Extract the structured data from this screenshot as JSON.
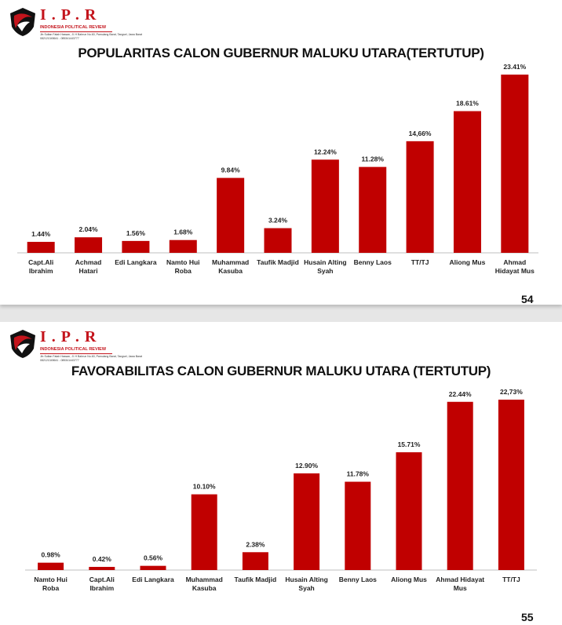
{
  "slides": [
    {
      "logo": {
        "title": "I . P . R",
        "subtitle": "INDONESIA POLITICAL REVIEW",
        "address": "Jln Sultan Fatah Hassan, Jl. H Bahrun No.60, Pamulang Barat, Tangsel, Jawa Barat",
        "contact": "082121345641 - 085341443777"
      },
      "page_number": "54"
    },
    {
      "logo": {
        "title": "I . P . R",
        "subtitle": "INDONESIA POLITICAL REVIEW",
        "address": "Jln Sultan Fatah Hassan, Jl. H Bahrun No.60, Pamulang Barat, Tangsel, Jawa Barat",
        "contact": "082121345641 - 085341443777"
      },
      "page_number": "55"
    }
  ],
  "colors": {
    "bar": "#c00000",
    "brand": "#c4141c",
    "axis": "#bfbfbf"
  },
  "chart_data": [
    {
      "type": "bar",
      "title": "POPULARITAS CALON GUBERNUR MALUKU UTARA(TERTUTUP)",
      "xlabel": "",
      "ylabel": "",
      "ylim": [
        0,
        23.41
      ],
      "grid": false,
      "categories": [
        [
          "Capt.Ali",
          "Ibrahim"
        ],
        [
          "Achmad",
          "Hatari"
        ],
        [
          "Edi Langkara"
        ],
        [
          "Namto Hui",
          "Roba"
        ],
        [
          "Muhammad",
          "Kasuba"
        ],
        [
          "Taufik Madjid"
        ],
        [
          "Husain Alting",
          "Syah"
        ],
        [
          "Benny Laos"
        ],
        [
          "TT/TJ"
        ],
        [
          "Aliong Mus"
        ],
        [
          "Ahmad",
          "Hidayat Mus"
        ]
      ],
      "values": [
        1.44,
        2.04,
        1.56,
        1.68,
        9.84,
        3.24,
        12.24,
        11.28,
        14.66,
        18.61,
        23.41
      ],
      "labels": [
        "1.44%",
        "2.04%",
        "1.56%",
        "1.68%",
        "9.84%",
        "3.24%",
        "12.24%",
        "11.28%",
        "14,66%",
        "18.61%",
        "23.41%"
      ]
    },
    {
      "type": "bar",
      "title": "FAVORABILITAS  CALON GUBERNUR MALUKU UTARA  (TERTUTUP)",
      "xlabel": "",
      "ylabel": "",
      "ylim": [
        0,
        22.73
      ],
      "grid": false,
      "categories": [
        [
          "Namto Hui",
          "Roba"
        ],
        [
          "Capt.Ali",
          "Ibrahim"
        ],
        [
          "Edi Langkara"
        ],
        [
          "Muhammad",
          "Kasuba"
        ],
        [
          "Taufik Madjid"
        ],
        [
          "Husain Alting",
          "Syah"
        ],
        [
          "Benny Laos"
        ],
        [
          "Aliong Mus"
        ],
        [
          "Ahmad Hidayat",
          "Mus"
        ],
        [
          "TT/TJ"
        ]
      ],
      "values": [
        0.98,
        0.42,
        0.56,
        10.1,
        2.38,
        12.9,
        11.78,
        15.71,
        22.44,
        22.73
      ],
      "labels": [
        "0.98%",
        "0.42%",
        "0.56%",
        "10.10%",
        "2.38%",
        "12.90%",
        "11.78%",
        "15.71%",
        "22.44%",
        "22,73%"
      ]
    }
  ]
}
